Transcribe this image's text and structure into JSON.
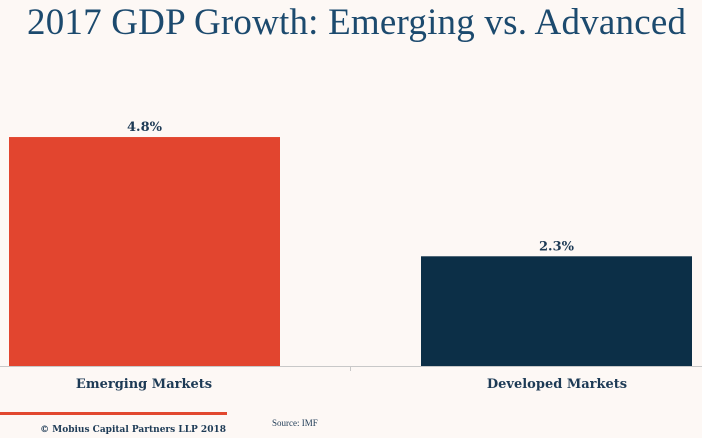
{
  "chart_data": {
    "type": "bar",
    "title": "2017 GDP Growth: Emerging vs. Advanced",
    "categories": [
      "Emerging Markets",
      "Developed Markets"
    ],
    "values": [
      4.8,
      2.3
    ],
    "data_labels": [
      "4.8%",
      "2.3%"
    ],
    "colors": [
      "#e2452f",
      "#0c2f47"
    ],
    "xlabel": "",
    "ylabel": "",
    "ylim": [
      0,
      6
    ],
    "grid": false,
    "legend": "none"
  },
  "footer": {
    "copyright": "© Mobius Capital Partners LLP 2018",
    "source": "Source: IMF",
    "accent_color": "#e2482f"
  }
}
